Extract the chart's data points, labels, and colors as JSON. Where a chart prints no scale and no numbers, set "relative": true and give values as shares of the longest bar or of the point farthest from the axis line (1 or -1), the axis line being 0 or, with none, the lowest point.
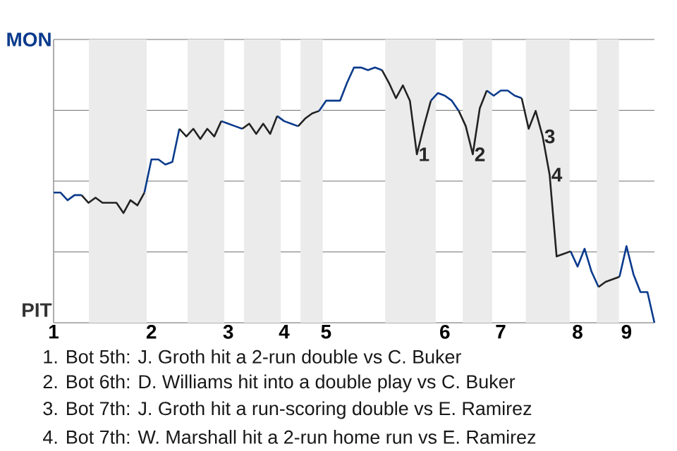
{
  "chart_data": {
    "type": "line",
    "relative": true,
    "categories": [
      "1",
      null,
      null,
      null,
      null,
      null,
      null,
      null,
      null,
      null,
      null,
      null,
      null,
      null,
      "2",
      null,
      null,
      null,
      null,
      null,
      null,
      null,
      null,
      null,
      null,
      "3",
      null,
      null,
      null,
      null,
      null,
      null,
      null,
      "4",
      null,
      null,
      null,
      null,
      null,
      "5",
      null,
      null,
      null,
      null,
      null,
      null,
      null,
      null,
      null,
      null,
      null,
      null,
      null,
      null,
      null,
      null,
      "6",
      null,
      null,
      null,
      null,
      null,
      null,
      null,
      "7",
      null,
      null,
      null,
      null,
      null,
      null,
      null,
      null,
      null,
      null,
      "8",
      null,
      null,
      null,
      null,
      null,
      null,
      "9",
      null,
      null,
      null,
      null
    ],
    "series": [
      {
        "color": "#0a3a8c",
        "values": [
          0.51,
          0.51,
          0.48,
          0.5,
          0.5,
          null,
          null,
          null,
          null,
          null,
          null,
          null,
          null,
          0.51,
          0.64,
          0.64,
          0.62,
          0.63,
          0.76,
          null,
          null,
          null,
          null,
          null,
          0.79,
          0.78,
          0.77,
          0.76,
          null,
          null,
          null,
          null,
          0.81,
          0.79,
          0.78,
          0.77,
          null,
          null,
          0.83,
          0.87,
          0.87,
          0.87,
          0.94,
          1,
          1,
          0.99,
          1,
          0.99,
          null,
          null,
          null,
          null,
          null,
          null,
          0.87,
          0.9,
          0.89,
          0.87,
          0.83,
          null,
          null,
          null,
          0.91,
          0.89,
          0.91,
          0.91,
          0.89,
          0.88,
          null,
          null,
          null,
          null,
          null,
          null,
          0.28,
          0.22,
          0.29,
          0.2,
          0.14,
          null,
          null,
          0.18,
          0.3,
          0.19,
          0.12,
          0.12,
          0
        ]
      },
      {
        "color": "#222222",
        "values": [
          null,
          null,
          null,
          null,
          0.5,
          0.47,
          0.49,
          0.47,
          0.47,
          0.47,
          0.43,
          0.48,
          0.46,
          0.51,
          null,
          null,
          null,
          null,
          0.76,
          0.73,
          0.76,
          0.72,
          0.76,
          0.73,
          0.79,
          null,
          null,
          0.76,
          0.78,
          0.74,
          0.78,
          0.74,
          0.81,
          null,
          null,
          0.77,
          0.8,
          0.82,
          0.83,
          null,
          null,
          null,
          null,
          null,
          null,
          null,
          null,
          0.99,
          0.94,
          0.88,
          0.93,
          0.87,
          0.66,
          0.77,
          0.87,
          null,
          null,
          null,
          0.83,
          0.77,
          0.66,
          0.84,
          0.91,
          null,
          null,
          null,
          null,
          0.88,
          0.76,
          0.83,
          0.73,
          0.58,
          0.26,
          0.27,
          0.28,
          null,
          null,
          null,
          0.14,
          0.16,
          0.17,
          0.18,
          null,
          null,
          null,
          null,
          null
        ]
      }
    ],
    "grid": "y",
    "marker": "none",
    "line_style": "solid",
    "annotations": [
      {
        "text": "1",
        "y": 0.66
      },
      {
        "text": "2",
        "y": 0.66
      },
      {
        "text": "3",
        "y": 0.73
      },
      {
        "text": "4",
        "y": 0.58
      },
      "MON",
      "PIT",
      "1. Bot 5th: J. Groth hit a 2-run double vs C. Buker",
      "2. Bot 6th: D. Williams hit into a double play vs C. Buker",
      "3. Bot 7th: J. Groth hit a run-scoring double vs E. Ramirez",
      "4. Bot 7th: W. Marshall hit a 2-run home run vs E. Ramirez"
    ]
  }
}
